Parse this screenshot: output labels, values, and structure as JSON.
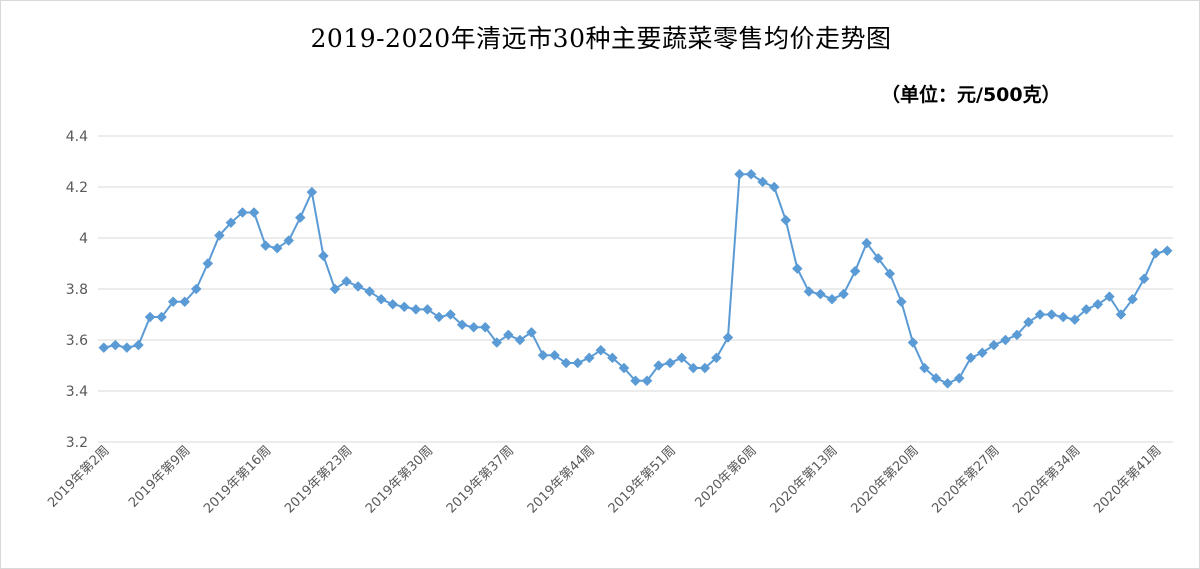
{
  "chart_data": {
    "type": "line",
    "title": "2019-2020年清远市30种主要蔬菜零售均价走势图",
    "unit_label": "（单位：元/500克）",
    "xlabel": "",
    "ylabel": "",
    "ylim": [
      3.2,
      4.4
    ],
    "yticks": [
      3.2,
      3.4,
      3.6,
      3.8,
      4,
      4.2,
      4.4
    ],
    "grid": true,
    "legend": "none",
    "line_color": "#5B9BD5",
    "marker": "diamond",
    "x_tick_labels": [
      "2019年第2周",
      "2019年第9周",
      "2019年第16周",
      "2019年第23周",
      "2019年第30周",
      "2019年第37周",
      "2019年第44周",
      "2019年第51周",
      "2020年第6周",
      "2020年第13周",
      "2020年第20周",
      "2020年第27周",
      "2020年第34周",
      "2020年第41周"
    ],
    "series": [
      {
        "values": [
          3.57,
          3.58,
          3.57,
          3.58,
          3.69,
          3.69,
          3.75,
          3.75,
          3.8,
          3.9,
          4.01,
          4.06,
          4.1,
          4.1,
          3.97,
          3.96,
          3.99,
          4.08,
          4.18,
          3.93,
          3.8,
          3.83,
          3.81,
          3.79,
          3.76,
          3.74,
          3.73,
          3.72,
          3.72,
          3.69,
          3.7,
          3.66,
          3.65,
          3.65,
          3.59,
          3.62,
          3.6,
          3.63,
          3.54,
          3.54,
          3.51,
          3.51,
          3.53,
          3.56,
          3.53,
          3.49,
          3.44,
          3.44,
          3.5,
          3.51,
          3.53,
          3.49,
          3.49,
          3.53,
          3.61,
          4.25,
          4.25,
          4.22,
          4.2,
          4.07,
          3.88,
          3.79,
          3.78,
          3.76,
          3.78,
          3.87,
          3.98,
          3.92,
          3.86,
          3.75,
          3.59,
          3.49,
          3.45,
          3.43,
          3.45,
          3.53,
          3.55,
          3.58,
          3.6,
          3.62,
          3.67,
          3.7,
          3.7,
          3.69,
          3.68,
          3.72,
          3.74,
          3.77,
          3.7,
          3.76,
          3.84,
          3.94,
          3.95
        ]
      }
    ]
  }
}
